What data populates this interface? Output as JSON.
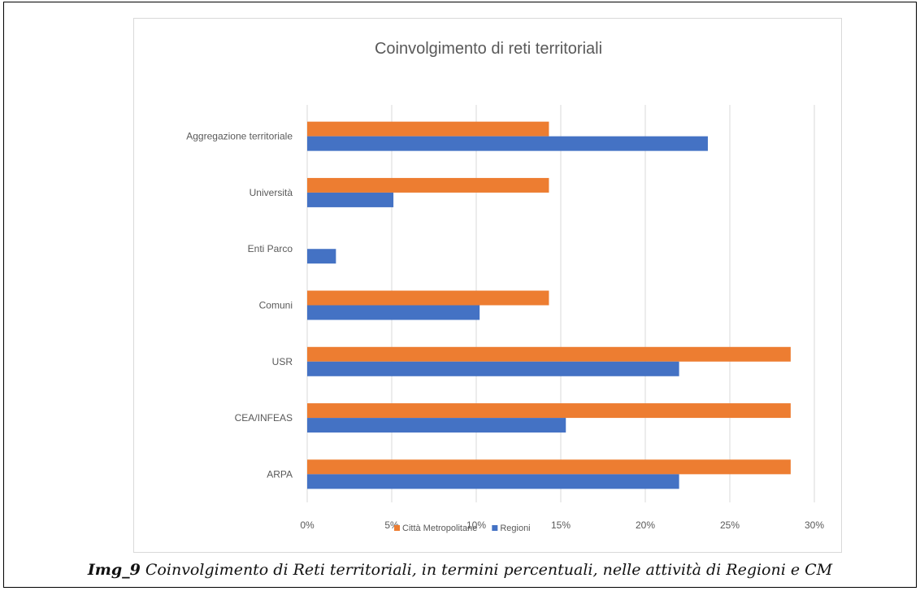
{
  "chart_data": {
    "type": "bar",
    "orientation": "horizontal",
    "title": "Coinvolgimento di reti territoriali",
    "xlabel": "",
    "ylabel": "",
    "categories": [
      "Aggregazione territoriale",
      "Università",
      "Enti Parco",
      "Comuni",
      "USR",
      "CEA/INFEAS",
      "ARPA"
    ],
    "series": [
      {
        "name": "Città Metropolitane",
        "color": "#ed7d31",
        "values": [
          14.3,
          14.3,
          0,
          14.3,
          28.6,
          28.6,
          28.6
        ]
      },
      {
        "name": "Regioni",
        "color": "#4472c4",
        "values": [
          23.7,
          5.1,
          1.7,
          10.2,
          22.0,
          15.3,
          22.0
        ]
      }
    ],
    "xlim": [
      0,
      30
    ],
    "xticks": [
      "0%",
      "5%",
      "10%",
      "15%",
      "20%",
      "25%",
      "30%"
    ],
    "grid": "vertical",
    "legend": "bottom"
  },
  "caption": {
    "label": "Img_9",
    "text": " Coinvolgimento di Reti territoriali, in termini percentuali, nelle attività di Regioni e CM"
  }
}
